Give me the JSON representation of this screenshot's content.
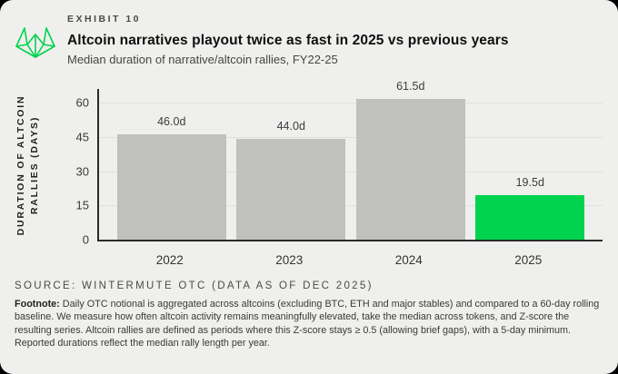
{
  "header": {
    "exhibit_label": "EXHIBIT 10"
  },
  "chart_data": {
    "type": "bar",
    "title": "Altcoin narratives playout twice as fast in 2025 vs previous years",
    "subtitle": "Median duration of narrative/altcoin rallies, FY22-25",
    "categories": [
      "2022",
      "2023",
      "2024",
      "2025"
    ],
    "values": [
      46.0,
      44.0,
      61.5,
      19.5
    ],
    "value_labels": [
      "46.0d",
      "44.0d",
      "61.5d",
      "19.5d"
    ],
    "highlight_index": 3,
    "ylabel_line1": "DURATION OF ALTCOIN",
    "ylabel_line2": "RALLIES (DAYS)",
    "yticks": [
      0,
      15,
      30,
      45,
      60
    ],
    "ylim": [
      0,
      66
    ],
    "grid": true,
    "legend": false
  },
  "colors": {
    "background": "#eff0ed",
    "bar_default": "#c0c1bf",
    "bar_highlight": "#00d34d",
    "logo_green": "#00d34d",
    "gridline": "#e0e1dd",
    "axis": "#2a2a2a"
  },
  "footer": {
    "source": "SOURCE: WINTERMUTE OTC (DATA AS OF DEC 2025)",
    "footnote_label": "Footnote:",
    "footnote_text": "Daily OTC notional is aggregated across altcoins (excluding BTC, ETH and major stables) and compared to a 60-day rolling baseline. We measure how often altcoin activity remains meaningfully elevated, take the median across tokens, and Z-score the resulting series. Altcoin rallies are defined as periods where this Z-score stays ≥ 0.5 (allowing brief gaps), with a 5-day minimum. Reported durations reflect the median rally length per year."
  }
}
